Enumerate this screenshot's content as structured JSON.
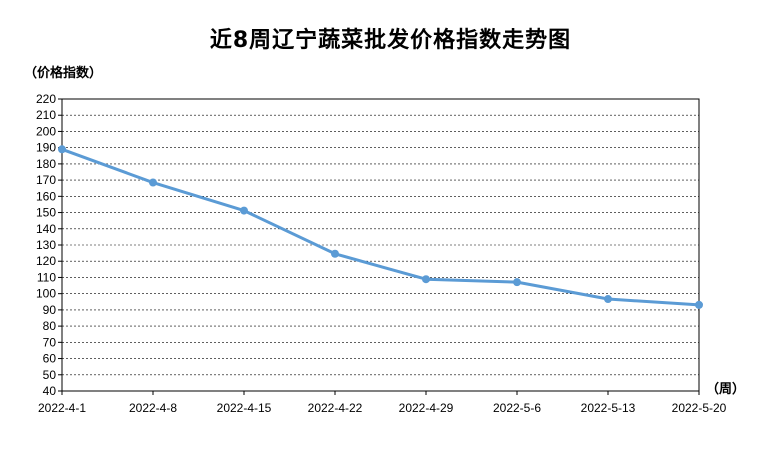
{
  "chart_data": {
    "type": "line",
    "title": "近8周辽宁蔬菜批发价格指数走势图",
    "ylabel": "（价格指数）",
    "xlabel": "（周）",
    "x": [
      "2022-4-1",
      "2022-4-8",
      "2022-4-15",
      "2022-4-22",
      "2022-4-29",
      "2022-5-6",
      "2022-5-13",
      "2022-5-20"
    ],
    "series": [
      {
        "name": "",
        "values": [
          189.0,
          168.5,
          151.2,
          124.6,
          108.9,
          107.1,
          96.7,
          93.1
        ]
      }
    ],
    "ylim": [
      40,
      220
    ],
    "ytick_step": 10,
    "grid": "horizontal-dashed",
    "colors": {
      "line": "#5b9bd5",
      "grid": "#000000",
      "axis": "#000000"
    }
  }
}
